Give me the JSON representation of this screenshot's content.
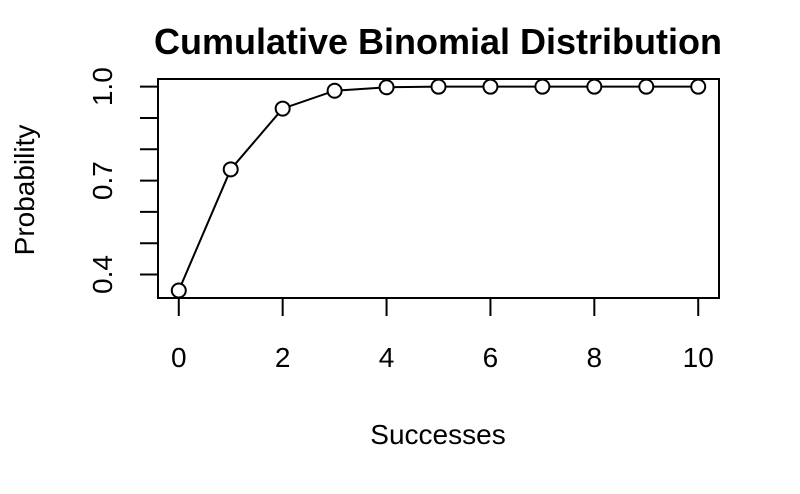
{
  "chart_data": {
    "type": "line",
    "title": "Cumulative Binomial Distribution",
    "xlabel": "Successes",
    "ylabel": "Probability",
    "x": [
      0,
      1,
      2,
      3,
      4,
      5,
      6,
      7,
      8,
      9,
      10
    ],
    "values": [
      0.349,
      0.736,
      0.93,
      0.987,
      0.998,
      1.0,
      1.0,
      1.0,
      1.0,
      1.0,
      1.0
    ],
    "xlim": [
      -0.4,
      10.4
    ],
    "ylim": [
      0.325,
      1.0245
    ],
    "x_ticks": [
      0,
      2,
      4,
      6,
      8,
      10
    ],
    "y_ticks": [
      0.4,
      0.5,
      0.6,
      0.7,
      0.8,
      0.9,
      1.0
    ],
    "y_tick_labels": [
      {
        "value": 0.4,
        "label": "0.4"
      },
      {
        "value": 0.7,
        "label": "0.7"
      },
      {
        "value": 1.0,
        "label": "1.0"
      }
    ],
    "line_color": "#000000",
    "marker": "open-circle",
    "grid": false
  }
}
